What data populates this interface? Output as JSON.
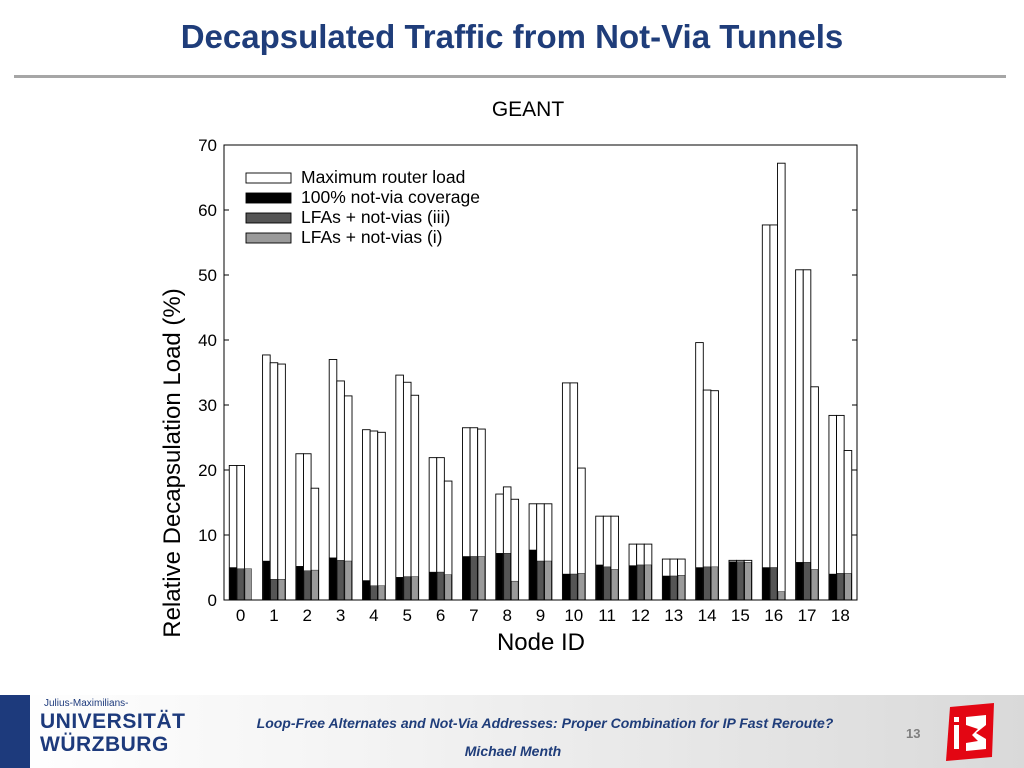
{
  "slide": {
    "title": "Decapsulated Traffic from Not-Via Tunnels",
    "page_number": "13"
  },
  "footer": {
    "subtitle": "Loop-Free Alternates and Not-Via Addresses: Proper Combination for IP Fast Reroute?",
    "author": "Michael Menth",
    "logo_tag": "Julius-Maximilians-",
    "logo_line1": "UNIVERSITÄT",
    "logo_line2": "WÜRZBURG"
  },
  "colors": {
    "title": "#1f3d7a",
    "rule": "#a6a6a6",
    "logo_blue": "#1d3a7c",
    "logo_red": "#e30613"
  },
  "chart_data": {
    "type": "bar",
    "title": "GEANT",
    "xlabel": "Node ID",
    "ylabel": "Relative Decapsulation Load (%)",
    "ylim": [
      0,
      70
    ],
    "yticks": [
      0,
      10,
      20,
      30,
      40,
      50,
      60,
      70
    ],
    "grid": false,
    "legend_position": "top-left",
    "categories": [
      "0",
      "1",
      "2",
      "3",
      "4",
      "5",
      "6",
      "7",
      "8",
      "9",
      "10",
      "11",
      "12",
      "13",
      "14",
      "15",
      "16",
      "17",
      "18"
    ],
    "series": [
      {
        "name": "Maximum router load",
        "style": "open",
        "groups": [
          [
            20.7,
            20.7,
            0
          ],
          [
            37.7,
            36.5,
            36.3
          ],
          [
            22.5,
            22.5,
            17.2
          ],
          [
            37.0,
            33.7,
            31.4
          ],
          [
            26.2,
            26.0,
            25.8
          ],
          [
            34.6,
            33.5,
            31.5
          ],
          [
            21.9,
            21.9,
            18.3
          ],
          [
            26.5,
            26.5,
            26.3
          ],
          [
            16.3,
            17.4,
            15.5
          ],
          [
            14.8,
            14.8,
            14.8
          ],
          [
            33.4,
            33.4,
            20.3
          ],
          [
            12.9,
            12.9,
            12.9
          ],
          [
            8.6,
            8.6,
            8.6
          ],
          [
            6.3,
            6.3,
            6.3
          ],
          [
            39.6,
            32.3,
            32.2
          ],
          [
            6.1,
            6.1,
            6.1
          ],
          [
            57.7,
            57.7,
            67.2
          ],
          [
            50.8,
            50.8,
            32.8
          ],
          [
            28.4,
            28.4,
            23.0
          ]
        ]
      },
      {
        "name": "100% not-via coverage",
        "color": "#000000",
        "values": [
          5.0,
          6.0,
          5.2,
          6.5,
          3.0,
          3.5,
          4.3,
          6.7,
          7.2,
          7.7,
          4.0,
          5.4,
          5.3,
          3.7,
          5.0,
          5.9,
          5.0,
          5.8,
          4.0
        ]
      },
      {
        "name": "LFAs + not-vias (iii)",
        "color": "#555555",
        "values": [
          4.8,
          3.2,
          4.5,
          6.1,
          2.2,
          3.6,
          4.3,
          6.7,
          7.2,
          6.0,
          4.0,
          5.1,
          5.4,
          3.7,
          5.1,
          5.9,
          5.0,
          5.8,
          4.1
        ]
      },
      {
        "name": "LFAs + not-vias (i)",
        "color": "#9a9a9a",
        "values": [
          4.8,
          3.2,
          4.6,
          6.0,
          2.2,
          3.6,
          3.9,
          6.7,
          2.9,
          6.0,
          4.1,
          4.7,
          5.4,
          3.8,
          5.1,
          5.8,
          1.3,
          4.7,
          4.1
        ]
      }
    ]
  }
}
